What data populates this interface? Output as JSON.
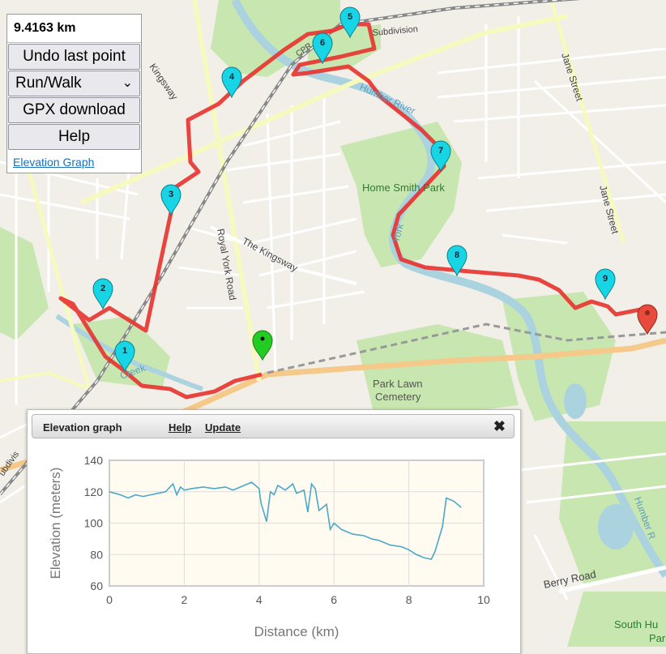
{
  "distance": "9.4163 km",
  "controls": {
    "undo_label": "Undo last point",
    "mode_selected": "Run/Walk",
    "gpx_label": "GPX download",
    "help_label": "Help",
    "elevation_link": "Elevation Graph"
  },
  "map_labels": {
    "humber_river": "Humber River",
    "home_smith_park": "Home Smith Park",
    "park_lawn_cemetery_1": "Park Lawn",
    "park_lawn_cemetery_2": "Cemetery",
    "the_kingsway": "The Kingsway",
    "royal_york_road": "Royal York Road",
    "jane_street_1": "Jane Street",
    "jane_street_2": "Jane Street",
    "kingsway": "Kingsway",
    "berry_road": "Berry Road",
    "south_humber_park_1": "South Hu",
    "south_humber_park_2": "Park",
    "subdivision_top": "Subdivision",
    "subdivision_left": "ubdivis",
    "york": "York",
    "creek": "Creek",
    "humber_r_right": "Humber R",
    "cpr_label": "CPR"
  },
  "waypoints": [
    "1",
    "2",
    "3",
    "4",
    "5",
    "6",
    "7",
    "8",
    "9"
  ],
  "colors": {
    "route": "#e8322d",
    "marker_fill": "#18d5e6",
    "start_marker": "#22cc22",
    "end_marker": "#e84b3c",
    "water": "#aad3df",
    "park": "#c8e6b0",
    "chart_line": "#4aa8c8",
    "chart_bg": "#fffbf0"
  },
  "elevation_panel": {
    "title": "Elevation graph",
    "help": "Help",
    "update": "Update",
    "close": "✖"
  },
  "chart_data": {
    "type": "line",
    "xlabel": "Distance (km)",
    "ylabel": "Elevation (meters)",
    "xlim": [
      0,
      10
    ],
    "ylim": [
      60,
      140
    ],
    "xticks": [
      "0",
      "2",
      "4",
      "6",
      "8",
      "10"
    ],
    "yticks": [
      "60",
      "80",
      "100",
      "120",
      "140"
    ],
    "grid": "on",
    "x": [
      0,
      0.3,
      0.5,
      0.7,
      0.9,
      1.1,
      1.3,
      1.5,
      1.7,
      1.8,
      1.9,
      2.0,
      2.2,
      2.5,
      2.8,
      3.1,
      3.3,
      3.6,
      3.8,
      4.0,
      4.05,
      4.2,
      4.3,
      4.4,
      4.5,
      4.7,
      4.9,
      5.0,
      5.2,
      5.3,
      5.4,
      5.5,
      5.6,
      5.8,
      5.9,
      6.0,
      6.2,
      6.5,
      6.8,
      7.0,
      7.2,
      7.5,
      7.8,
      8.0,
      8.2,
      8.4,
      8.6,
      8.7,
      8.8,
      8.9,
      9.0,
      9.1,
      9.2,
      9.4
    ],
    "y": [
      120,
      118,
      116,
      118,
      117,
      118,
      119,
      120,
      125,
      118,
      123,
      121,
      122,
      123,
      122,
      123,
      121,
      124,
      126,
      122,
      113,
      101,
      120,
      118,
      124,
      121,
      125,
      119,
      121,
      107,
      125,
      122,
      108,
      112,
      96,
      100,
      96,
      93,
      92,
      90,
      89,
      86,
      85,
      83,
      80,
      78,
      77,
      82,
      90,
      98,
      116,
      115,
      114,
      110
    ]
  }
}
